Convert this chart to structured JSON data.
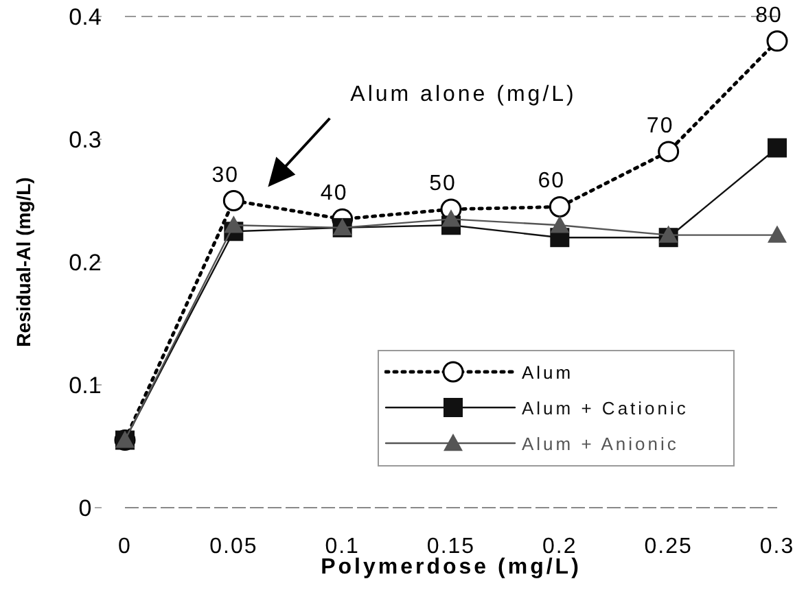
{
  "chart_data": {
    "type": "line",
    "xlabel": "Polymerdose (mg/L)",
    "ylabel": "Residual-Al (mg/L)",
    "x": [
      0,
      0.05,
      0.1,
      0.15,
      0.2,
      0.25,
      0.3
    ],
    "xlim": [
      0,
      0.3
    ],
    "xticks": [
      0,
      0.05,
      0.1,
      0.15,
      0.2,
      0.25,
      0.3
    ],
    "ylim": [
      0,
      0.4
    ],
    "yticks": [
      0,
      0.1,
      0.2,
      0.3,
      0.4
    ],
    "grid": false,
    "legend": "bottom right",
    "series": [
      {
        "name": "Alum",
        "color": "#000000",
        "marker": "circle",
        "line_style": "dotted",
        "values": [
          0.055,
          0.25,
          0.235,
          0.243,
          0.245,
          0.29,
          0.38
        ]
      },
      {
        "name": "Alum + Cationic",
        "color": "#111111",
        "marker": "square",
        "line_style": "solid",
        "values": [
          0.055,
          0.225,
          0.228,
          0.23,
          0.22,
          0.22,
          0.293
        ]
      },
      {
        "name": "Alum + Anionic",
        "color": "#555555",
        "marker": "triangle",
        "line_style": "solid",
        "values": [
          0.055,
          0.23,
          0.228,
          0.235,
          0.23,
          0.222,
          0.222
        ]
      }
    ],
    "annotations": [
      "Alum alone (mg/L)",
      {
        "text": "30",
        "x": 0.05,
        "y": 0.25
      },
      {
        "text": "40",
        "x": 0.1,
        "y": 0.235
      },
      {
        "text": "50",
        "x": 0.15,
        "y": 0.243
      },
      {
        "text": "60",
        "x": 0.2,
        "y": 0.245
      },
      {
        "text": "70",
        "x": 0.25,
        "y": 0.29
      },
      {
        "text": "80",
        "x": 0.3,
        "y": 0.38
      }
    ]
  }
}
